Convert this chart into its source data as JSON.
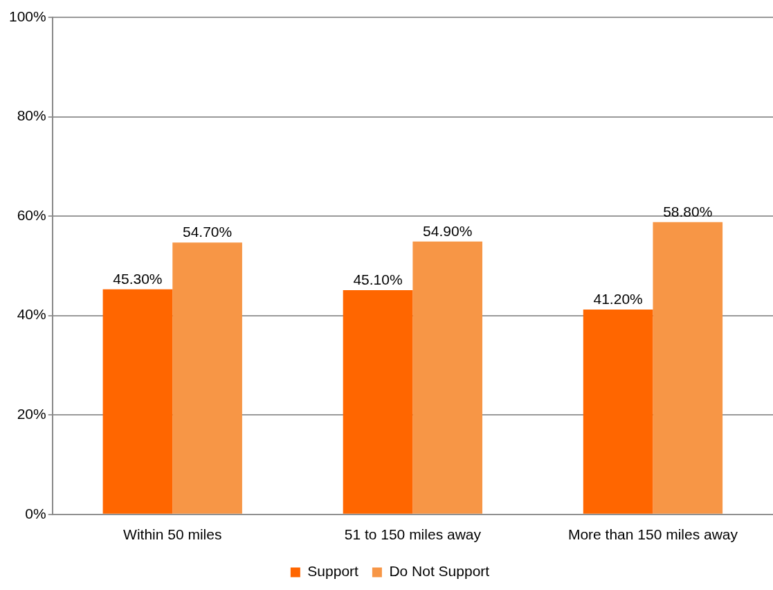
{
  "chart_data": {
    "type": "bar",
    "categories": [
      "Within 50 miles",
      "51 to 150 miles away",
      "More than 150 miles away"
    ],
    "series": [
      {
        "name": "Support",
        "color": "#ff6600",
        "values": [
          45.3,
          45.1,
          41.2
        ],
        "value_labels": [
          "45.30%",
          "45.10%",
          "41.20%"
        ]
      },
      {
        "name": "Do Not Support",
        "color": "#f79646",
        "values": [
          54.7,
          54.9,
          58.8
        ],
        "value_labels": [
          "54.70%",
          "54.90%",
          "58.80%"
        ]
      }
    ],
    "ylim": [
      0,
      100
    ],
    "yticks": [
      {
        "value": 0,
        "label": "0%"
      },
      {
        "value": 20,
        "label": "20%"
      },
      {
        "value": 40,
        "label": "40%"
      },
      {
        "value": 60,
        "label": "60%"
      },
      {
        "value": 80,
        "label": "80%"
      },
      {
        "value": 100,
        "label": "100%"
      }
    ],
    "grid": "y",
    "legend": "bottom"
  }
}
